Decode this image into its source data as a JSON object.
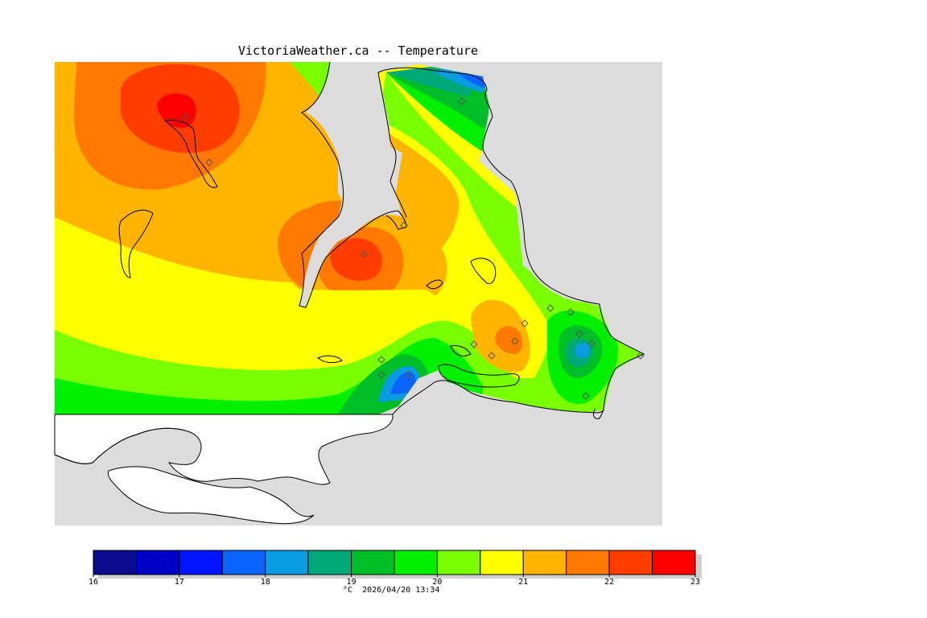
{
  "title": "VictoriaWeather.ca -- Temperature",
  "legend": {
    "unit": "°C",
    "timestamp": "2026/04/20 13:34",
    "ticks": [
      "16",
      "17",
      "18",
      "19",
      "20",
      "21",
      "22",
      "23"
    ],
    "min": 16,
    "max": 23,
    "step": 0.5,
    "colors": [
      "#0a0a8c",
      "#0000c8",
      "#0014ff",
      "#0a64ff",
      "#0a9be1",
      "#00aa78",
      "#00be28",
      "#00f000",
      "#78ff00",
      "#ffff00",
      "#ffb400",
      "#ff7800",
      "#ff3c00",
      "#ff0000"
    ]
  },
  "colors": {
    "land_background": "#dcdcdc",
    "no_data": "#ffffff",
    "station_marker": "#8c8c8c"
  }
}
